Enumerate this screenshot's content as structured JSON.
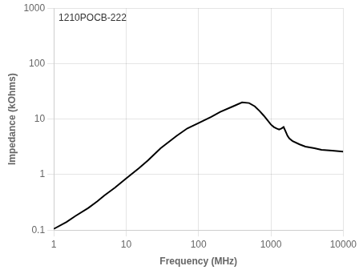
{
  "chart_data": {
    "type": "line",
    "xlabel": "Frequency (MHz)",
    "ylabel": "Impedance (kOhms)",
    "annotation": "1210POCB-222",
    "x": [
      1,
      1.5,
      2,
      3,
      4,
      5,
      7,
      10,
      15,
      20,
      30,
      50,
      70,
      100,
      150,
      200,
      300,
      400,
      500,
      600,
      700,
      800,
      900,
      1000,
      1100,
      1200,
      1300,
      1400,
      1500,
      1600,
      1700,
      1800,
      2000,
      2500,
      3000,
      4000,
      5000,
      7000,
      10000
    ],
    "values": [
      0.105,
      0.14,
      0.18,
      0.25,
      0.33,
      0.42,
      0.58,
      0.85,
      1.3,
      1.8,
      3.0,
      5.0,
      6.8,
      8.5,
      11.0,
      13.5,
      17.0,
      20.0,
      19.5,
      17.0,
      14.0,
      11.5,
      9.5,
      8.0,
      7.2,
      6.8,
      6.5,
      6.8,
      7.2,
      6.0,
      5.0,
      4.5,
      4.0,
      3.5,
      3.2,
      3.0,
      2.8,
      2.7,
      2.6
    ],
    "color": "#000000",
    "xlim": [
      1,
      10000
    ],
    "ylim": [
      0.1,
      1000
    ],
    "xticks": [
      1,
      10,
      100,
      1000,
      10000
    ],
    "yticks": [
      0.1,
      1,
      10,
      100,
      1000
    ],
    "log": true,
    "grid": true
  }
}
